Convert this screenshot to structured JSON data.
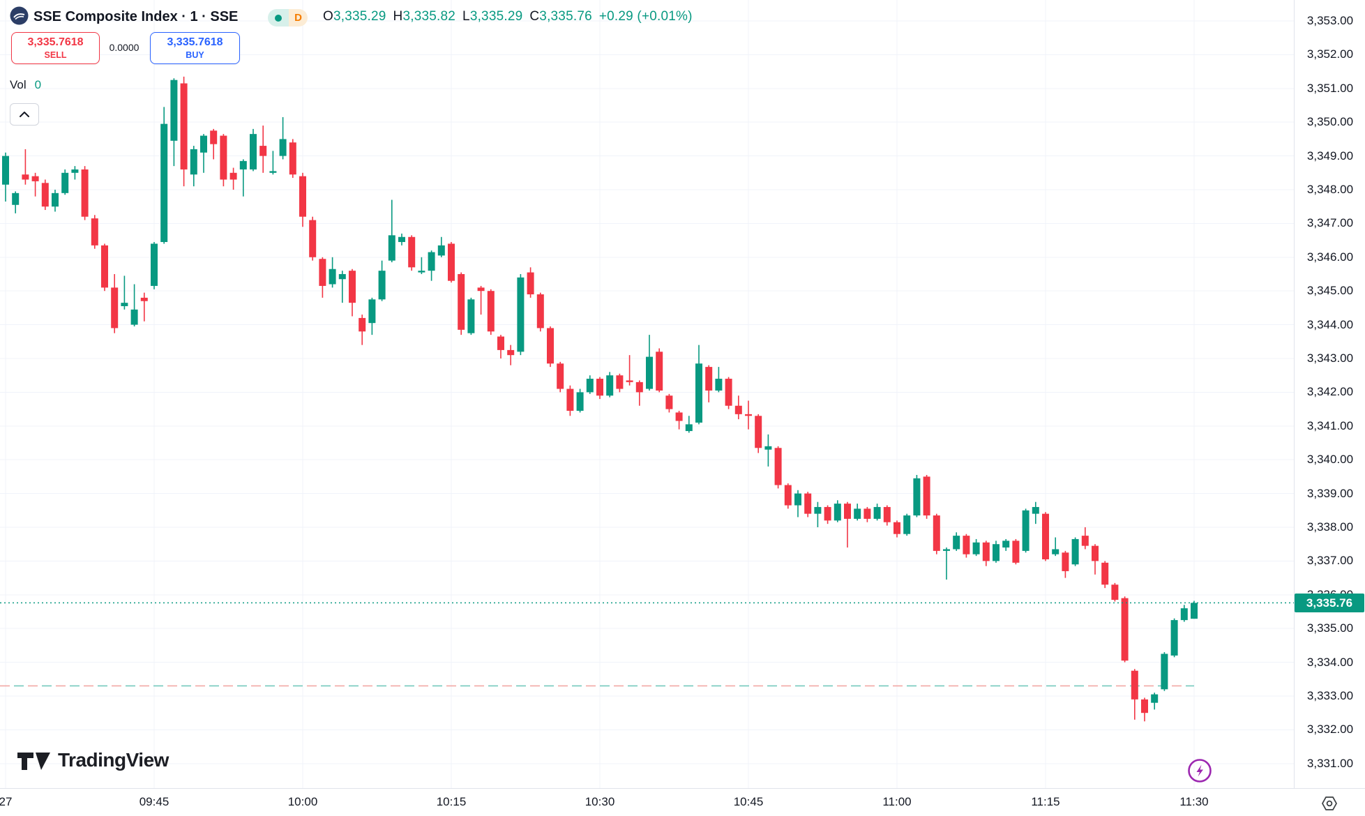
{
  "colors": {
    "up": "#089981",
    "down": "#f23645",
    "grid": "#f0f3fa",
    "axis_border": "#e0e3eb",
    "text": "#131722",
    "sell_red": "#f23645",
    "buy_blue": "#2962ff",
    "interval_orange": "#f57c00",
    "status_dot_green": "#089981",
    "flash_purple": "#9c27b0",
    "badge_green": "#089981"
  },
  "header": {
    "symbol_title": "SSE Composite Index · 1 · SSE",
    "interval_badge": "D",
    "ohlc": {
      "o_label": "O",
      "o_value": "3,335.29",
      "h_label": "H",
      "h_value": "3,335.82",
      "l_label": "L",
      "l_value": "3,335.29",
      "c_label": "C",
      "c_value": "3,335.76",
      "change": "+0.29 (+0.01%)"
    }
  },
  "trade_panel": {
    "sell_price": "3,335.7618",
    "sell_label": "SELL",
    "spread": "0.0000",
    "buy_price": "3,335.7618",
    "buy_label": "BUY"
  },
  "volume": {
    "label": "Vol",
    "value": "0"
  },
  "price_axis": {
    "labels": [
      "3,353.00",
      "3,352.00",
      "3,351.00",
      "3,350.00",
      "3,349.00",
      "3,348.00",
      "3,347.00",
      "3,346.00",
      "3,345.00",
      "3,344.00",
      "3,343.00",
      "3,342.00",
      "3,341.00",
      "3,340.00",
      "3,339.00",
      "3,338.00",
      "3,337.00",
      "3,336.00",
      "3,335.00",
      "3,334.00",
      "3,333.00",
      "3,332.00",
      "3,331.00"
    ],
    "last_price_badge": "3,335.76"
  },
  "time_axis": {
    "ticks": [
      {
        "label": "27",
        "time": "09:30"
      },
      {
        "label": "09:45",
        "time": "09:45"
      },
      {
        "label": "10:00",
        "time": "10:00"
      },
      {
        "label": "10:15",
        "time": "10:15"
      },
      {
        "label": "10:30",
        "time": "10:30"
      },
      {
        "label": "10:45",
        "time": "10:45"
      },
      {
        "label": "11:00",
        "time": "11:00"
      },
      {
        "label": "11:15",
        "time": "11:15"
      },
      {
        "label": "11:30",
        "time": "11:30"
      }
    ]
  },
  "watermark": "TradingView",
  "chart_data": {
    "type": "candlestick",
    "title": "SSE Composite Index",
    "interval": "1",
    "exchange": "SSE",
    "ylim": [
      3331,
      3353
    ],
    "x_range": [
      "09:29",
      "11:30"
    ],
    "grid": true,
    "price_line": {
      "value": 3335.76,
      "style": "dotted",
      "color": "#089981"
    },
    "reference_line": {
      "value": 3333.3,
      "style": "dashed",
      "color_a": "#f1a7a5",
      "color_b": "#74c9bd",
      "end_time": "11:30"
    },
    "candles": [
      [
        "09:29",
        3348.0,
        3348.9,
        3347.8,
        3348.8
      ],
      [
        "09:30",
        3348.15,
        3349.1,
        3347.65,
        3349.0
      ],
      [
        "09:31",
        3347.55,
        3347.95,
        3347.3,
        3347.9
      ],
      [
        "09:32",
        3348.45,
        3349.2,
        3348.15,
        3348.3
      ],
      [
        "09:33",
        3348.4,
        3348.5,
        3347.8,
        3348.25
      ],
      [
        "09:34",
        3348.2,
        3348.3,
        3347.4,
        3347.5
      ],
      [
        "09:35",
        3347.5,
        3348.0,
        3347.35,
        3347.9
      ],
      [
        "09:36",
        3347.9,
        3348.6,
        3347.85,
        3348.5
      ],
      [
        "09:37",
        3348.5,
        3348.7,
        3348.3,
        3348.6
      ],
      [
        "09:38",
        3348.6,
        3348.7,
        3347.1,
        3347.2
      ],
      [
        "09:39",
        3347.15,
        3347.25,
        3346.25,
        3346.35
      ],
      [
        "09:40",
        3346.35,
        3346.4,
        3345.0,
        3345.1
      ],
      [
        "09:41",
        3345.1,
        3345.5,
        3343.75,
        3343.9
      ],
      [
        "09:42",
        3344.55,
        3345.45,
        3344.45,
        3344.65
      ],
      [
        "09:43",
        3344.0,
        3345.2,
        3343.95,
        3344.45
      ],
      [
        "09:44",
        3344.8,
        3344.95,
        3344.1,
        3344.7
      ],
      [
        "09:45",
        3345.15,
        3346.45,
        3345.05,
        3346.4
      ],
      [
        "09:46",
        3346.45,
        3350.45,
        3346.4,
        3349.95
      ],
      [
        "09:47",
        3349.45,
        3351.3,
        3348.7,
        3351.25
      ],
      [
        "09:48",
        3351.15,
        3351.35,
        3348.1,
        3348.6
      ],
      [
        "09:49",
        3348.45,
        3349.3,
        3348.1,
        3349.2
      ],
      [
        "09:50",
        3349.1,
        3349.65,
        3348.5,
        3349.6
      ],
      [
        "09:51",
        3349.75,
        3349.8,
        3348.9,
        3349.35
      ],
      [
        "09:52",
        3349.6,
        3349.65,
        3348.1,
        3348.3
      ],
      [
        "09:53",
        3348.5,
        3348.65,
        3348.0,
        3348.3
      ],
      [
        "09:54",
        3348.6,
        3348.9,
        3347.8,
        3348.85
      ],
      [
        "09:55",
        3348.6,
        3349.8,
        3348.55,
        3349.65
      ],
      [
        "09:56",
        3349.3,
        3349.9,
        3348.5,
        3349.0
      ],
      [
        "09:57",
        3348.5,
        3349.15,
        3348.45,
        3348.55
      ],
      [
        "09:58",
        3349.0,
        3350.15,
        3348.9,
        3349.5
      ],
      [
        "09:59",
        3349.4,
        3349.5,
        3348.35,
        3348.45
      ],
      [
        "10:00",
        3348.4,
        3348.5,
        3346.9,
        3347.2
      ],
      [
        "10:01",
        3347.1,
        3347.2,
        3345.9,
        3346.0
      ],
      [
        "10:02",
        3345.95,
        3346.0,
        3344.8,
        3345.15
      ],
      [
        "10:03",
        3345.2,
        3346.0,
        3345.1,
        3345.65
      ],
      [
        "10:04",
        3345.35,
        3345.6,
        3344.65,
        3345.5
      ],
      [
        "10:05",
        3345.6,
        3345.65,
        3344.25,
        3344.65
      ],
      [
        "10:06",
        3344.2,
        3344.3,
        3343.4,
        3343.8
      ],
      [
        "10:07",
        3344.05,
        3344.8,
        3343.7,
        3344.75
      ],
      [
        "10:08",
        3344.75,
        3345.9,
        3344.7,
        3345.6
      ],
      [
        "10:09",
        3345.9,
        3347.7,
        3345.85,
        3346.65
      ],
      [
        "10:10",
        3346.45,
        3346.7,
        3346.35,
        3346.6
      ],
      [
        "10:11",
        3346.6,
        3346.65,
        3345.6,
        3345.7
      ],
      [
        "10:12",
        3345.55,
        3346.0,
        3345.5,
        3345.6
      ],
      [
        "10:13",
        3345.6,
        3346.2,
        3345.3,
        3346.15
      ],
      [
        "10:14",
        3346.05,
        3346.6,
        3346.0,
        3346.35
      ],
      [
        "10:15",
        3346.4,
        3346.45,
        3345.25,
        3345.3
      ],
      [
        "10:16",
        3345.5,
        3345.55,
        3343.7,
        3343.85
      ],
      [
        "10:17",
        3343.75,
        3344.8,
        3343.7,
        3344.75
      ],
      [
        "10:18",
        3345.1,
        3345.15,
        3344.3,
        3345.0
      ],
      [
        "10:19",
        3345.0,
        3345.05,
        3343.7,
        3343.8
      ],
      [
        "10:20",
        3343.65,
        3343.7,
        3343.0,
        3343.25
      ],
      [
        "10:21",
        3343.25,
        3343.4,
        3342.8,
        3343.1
      ],
      [
        "10:22",
        3343.2,
        3345.5,
        3343.1,
        3345.4
      ],
      [
        "10:23",
        3345.55,
        3345.7,
        3344.8,
        3344.9
      ],
      [
        "10:24",
        3344.9,
        3344.95,
        3343.8,
        3343.9
      ],
      [
        "10:25",
        3343.9,
        3343.95,
        3342.75,
        3342.85
      ],
      [
        "10:26",
        3342.85,
        3342.9,
        3342.0,
        3342.1
      ],
      [
        "10:27",
        3342.1,
        3342.2,
        3341.3,
        3341.45
      ],
      [
        "10:28",
        3341.45,
        3342.1,
        3341.4,
        3342.0
      ],
      [
        "10:29",
        3342.0,
        3342.5,
        3341.95,
        3342.4
      ],
      [
        "10:30",
        3342.4,
        3342.45,
        3341.8,
        3341.9
      ],
      [
        "10:31",
        3341.9,
        3342.6,
        3341.85,
        3342.5
      ],
      [
        "10:32",
        3342.5,
        3342.55,
        3342.0,
        3342.1
      ],
      [
        "10:33",
        3342.35,
        3343.1,
        3342.2,
        3342.3
      ],
      [
        "10:34",
        3342.3,
        3342.35,
        3341.6,
        3342.0
      ],
      [
        "10:35",
        3342.1,
        3343.7,
        3342.05,
        3343.05
      ],
      [
        "10:36",
        3343.2,
        3343.3,
        3342.0,
        3342.05
      ],
      [
        "10:37",
        3341.9,
        3341.95,
        3341.4,
        3341.5
      ],
      [
        "10:38",
        3341.4,
        3341.45,
        3340.9,
        3341.15
      ],
      [
        "10:39",
        3340.85,
        3341.3,
        3340.8,
        3341.05
      ],
      [
        "10:40",
        3341.1,
        3343.4,
        3341.05,
        3342.85
      ],
      [
        "10:41",
        3342.75,
        3342.8,
        3341.7,
        3342.05
      ],
      [
        "10:42",
        3342.05,
        3342.75,
        3342.0,
        3342.4
      ],
      [
        "10:43",
        3342.4,
        3342.45,
        3341.5,
        3341.6
      ],
      [
        "10:44",
        3341.6,
        3341.9,
        3341.2,
        3341.35
      ],
      [
        "10:45",
        3341.35,
        3341.75,
        3340.9,
        3341.3
      ],
      [
        "10:46",
        3341.3,
        3341.35,
        3340.2,
        3340.35
      ],
      [
        "10:47",
        3340.3,
        3340.75,
        3339.8,
        3340.4
      ],
      [
        "10:48",
        3340.35,
        3340.4,
        3339.15,
        3339.25
      ],
      [
        "10:49",
        3339.25,
        3339.3,
        3338.55,
        3338.65
      ],
      [
        "10:50",
        3338.65,
        3339.1,
        3338.3,
        3339.0
      ],
      [
        "10:51",
        3339.0,
        3339.05,
        3338.3,
        3338.4
      ],
      [
        "10:52",
        3338.4,
        3338.75,
        3338.0,
        3338.6
      ],
      [
        "10:53",
        3338.6,
        3338.65,
        3338.1,
        3338.2
      ],
      [
        "10:54",
        3338.2,
        3338.8,
        3338.15,
        3338.7
      ],
      [
        "10:55",
        3338.7,
        3338.75,
        3337.4,
        3338.25
      ],
      [
        "10:56",
        3338.25,
        3338.7,
        3338.2,
        3338.55
      ],
      [
        "10:57",
        3338.55,
        3338.6,
        3338.15,
        3338.25
      ],
      [
        "10:58",
        3338.25,
        3338.7,
        3338.2,
        3338.6
      ],
      [
        "10:59",
        3338.6,
        3338.65,
        3338.05,
        3338.15
      ],
      [
        "11:00",
        3338.15,
        3338.2,
        3337.7,
        3337.8
      ],
      [
        "11:01",
        3337.8,
        3338.4,
        3337.75,
        3338.35
      ],
      [
        "11:02",
        3338.35,
        3339.55,
        3338.3,
        3339.45
      ],
      [
        "11:03",
        3339.5,
        3339.55,
        3338.25,
        3338.35
      ],
      [
        "11:04",
        3338.35,
        3338.4,
        3337.2,
        3337.3
      ],
      [
        "11:05",
        3337.3,
        3337.4,
        3336.45,
        3337.35
      ],
      [
        "11:06",
        3337.35,
        3337.85,
        3337.3,
        3337.75
      ],
      [
        "11:07",
        3337.75,
        3337.8,
        3337.1,
        3337.2
      ],
      [
        "11:08",
        3337.2,
        3337.65,
        3337.15,
        3337.55
      ],
      [
        "11:09",
        3337.55,
        3337.6,
        3336.85,
        3337.0
      ],
      [
        "11:10",
        3337.0,
        3337.6,
        3336.95,
        3337.5
      ],
      [
        "11:11",
        3337.4,
        3337.65,
        3337.3,
        3337.6
      ],
      [
        "11:12",
        3337.6,
        3337.65,
        3336.9,
        3336.95
      ],
      [
        "11:13",
        3337.3,
        3338.55,
        3337.25,
        3338.5
      ],
      [
        "11:14",
        3338.4,
        3338.75,
        3338.1,
        3338.6
      ],
      [
        "11:15",
        3338.4,
        3338.45,
        3337.0,
        3337.05
      ],
      [
        "11:16",
        3337.2,
        3337.7,
        3337.15,
        3337.35
      ],
      [
        "11:17",
        3337.25,
        3337.3,
        3336.5,
        3336.7
      ],
      [
        "11:18",
        3336.9,
        3337.7,
        3336.85,
        3337.65
      ],
      [
        "11:19",
        3337.75,
        3338.0,
        3337.35,
        3337.45
      ],
      [
        "11:20",
        3337.45,
        3337.5,
        3336.6,
        3337.0
      ],
      [
        "11:21",
        3336.95,
        3337.0,
        3336.2,
        3336.3
      ],
      [
        "11:22",
        3336.3,
        3336.35,
        3335.8,
        3335.85
      ],
      [
        "11:23",
        3335.9,
        3335.95,
        3334.0,
        3334.05
      ],
      [
        "11:24",
        3333.75,
        3333.8,
        3332.3,
        3332.9
      ],
      [
        "11:25",
        3332.9,
        3332.95,
        3332.25,
        3332.5
      ],
      [
        "11:26",
        3332.8,
        3333.1,
        3332.6,
        3333.05
      ],
      [
        "11:27",
        3333.2,
        3334.3,
        3333.15,
        3334.25
      ],
      [
        "11:28",
        3334.2,
        3335.3,
        3334.15,
        3335.25
      ],
      [
        "11:29",
        3335.25,
        3335.7,
        3335.2,
        3335.6
      ],
      [
        "11:30",
        3335.29,
        3335.82,
        3335.29,
        3335.76
      ]
    ]
  }
}
